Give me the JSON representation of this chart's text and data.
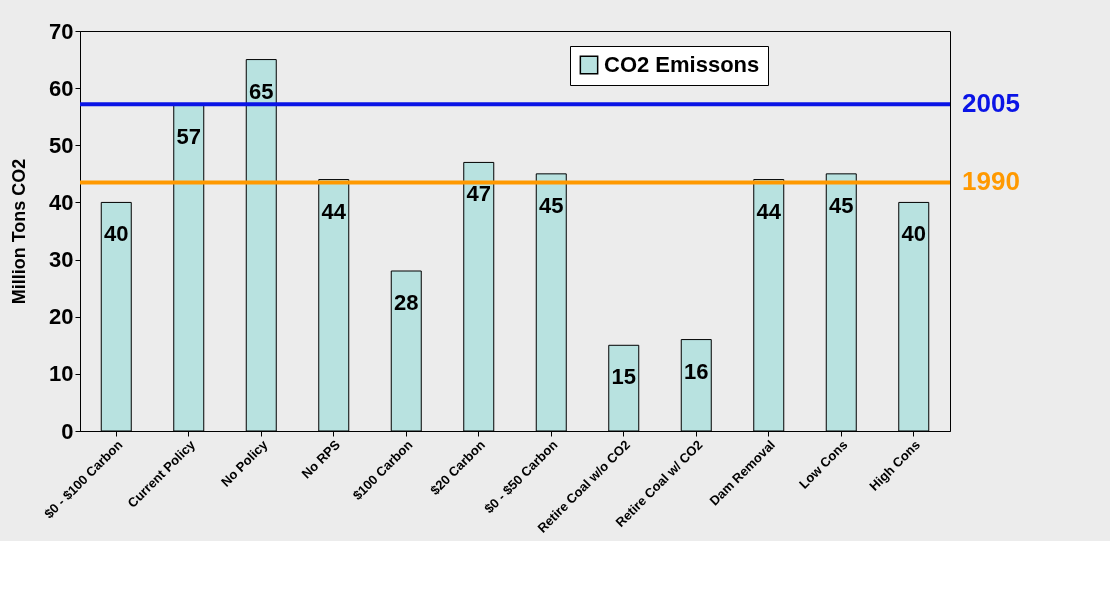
{
  "chart_data": {
    "type": "bar",
    "ylabel": "Million Tons CO2",
    "categories": [
      "$0 - $100 Carbon",
      "Current Policy",
      "No Policy",
      "No RPS",
      "$100 Carbon",
      "$20 Carbon",
      "$0 - $50 Carbon",
      "Retire Coal w/o CO2",
      "Retire Coal w/ CO2",
      "Dam Removal",
      "Low Cons",
      "High Cons"
    ],
    "series": [
      {
        "name": "CO2 Emissons",
        "color": "#b8e2e0",
        "values": [
          40,
          57,
          65,
          44,
          28,
          47,
          45,
          15,
          16,
          44,
          45,
          40
        ]
      }
    ],
    "data_labels": true,
    "ylim": [
      0,
      70
    ],
    "yticks": [
      0,
      10,
      20,
      30,
      40,
      50,
      60,
      70
    ],
    "grid": false,
    "legend": "top right",
    "ref_lines": [
      {
        "axis": "y",
        "value": 57.2,
        "color": "#0a14e6"
      },
      {
        "axis": "y",
        "value": 43.5,
        "color": "#ff9900"
      }
    ],
    "annotations": [
      "2005",
      "1990"
    ]
  }
}
